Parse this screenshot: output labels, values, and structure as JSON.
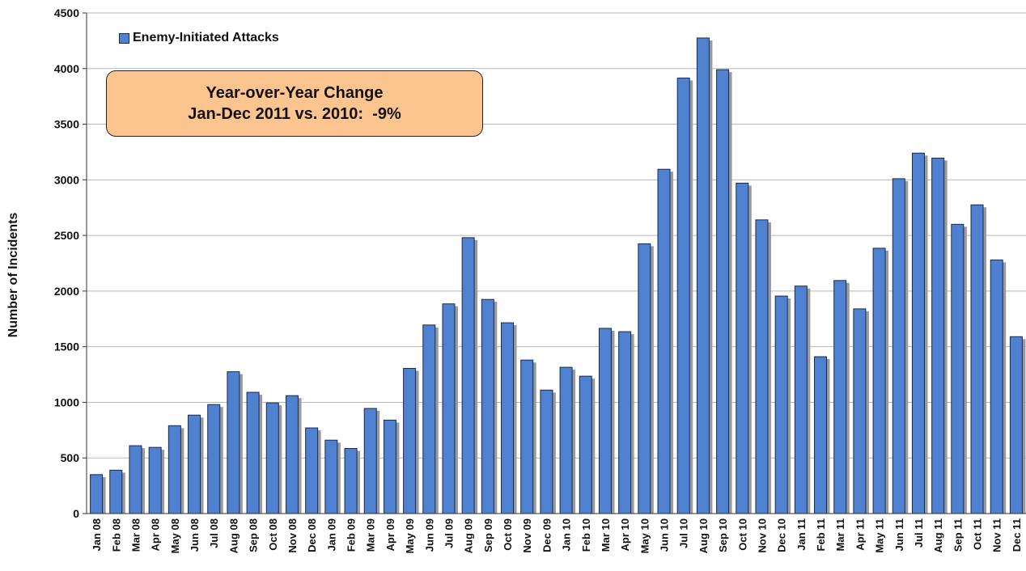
{
  "chart_data": {
    "type": "bar",
    "title": "",
    "xlabel": "",
    "ylabel": "Number of Incidents",
    "ylim": [
      0,
      4500
    ],
    "yticks": [
      0,
      500,
      1000,
      1500,
      2000,
      2500,
      3000,
      3500,
      4000,
      4500
    ],
    "grid": true,
    "legend_placement": "top-left",
    "colors": {
      "bar": "#4f81d1",
      "bar_edge": "#1a2a50",
      "shadow": "#9a9a9a",
      "grid": "#b8b8b8",
      "callout_fill": "#fcc590"
    },
    "categories": [
      "Jan 08",
      "Feb 08",
      "Mar 08",
      "Apr 08",
      "May 08",
      "Jun 08",
      "Jul 08",
      "Aug 08",
      "Sep 08",
      "Oct 08",
      "Nov 08",
      "Dec 08",
      "Jan 09",
      "Feb 09",
      "Mar 09",
      "Apr 09",
      "May 09",
      "Jun 09",
      "Jul 09",
      "Aug 09",
      "Sep 09",
      "Oct 09",
      "Nov 09",
      "Dec 09",
      "Jan 10",
      "Feb 10",
      "Mar 10",
      "Apr 10",
      "May 10",
      "Jun 10",
      "Jul 10",
      "Aug 10",
      "Sep 10",
      "Oct 10",
      "Nov 10",
      "Dec 10",
      "Jan 11",
      "Feb 11",
      "Mar 11",
      "Apr 11",
      "May 11",
      "Jun 11",
      "Jul 11",
      "Aug 11",
      "Sep 11",
      "Oct 11",
      "Nov 11",
      "Dec 11"
    ],
    "series": [
      {
        "name": "Enemy-Initiated Attacks",
        "values": [
          350,
          390,
          610,
          595,
          790,
          885,
          980,
          1275,
          1090,
          995,
          1060,
          770,
          660,
          585,
          945,
          840,
          1305,
          1695,
          1885,
          2480,
          1925,
          1715,
          1380,
          1110,
          1315,
          1235,
          1665,
          1635,
          2425,
          3095,
          3915,
          4275,
          3990,
          2970,
          2640,
          1955,
          2045,
          1410,
          2095,
          1840,
          2385,
          3010,
          3240,
          3195,
          2600,
          2775,
          2280,
          1590
        ]
      }
    ],
    "annotations": [
      {
        "line1": "Year-over-Year Change",
        "line2": "Jan-Dec 2011 vs. 2010:  -9%"
      }
    ]
  }
}
